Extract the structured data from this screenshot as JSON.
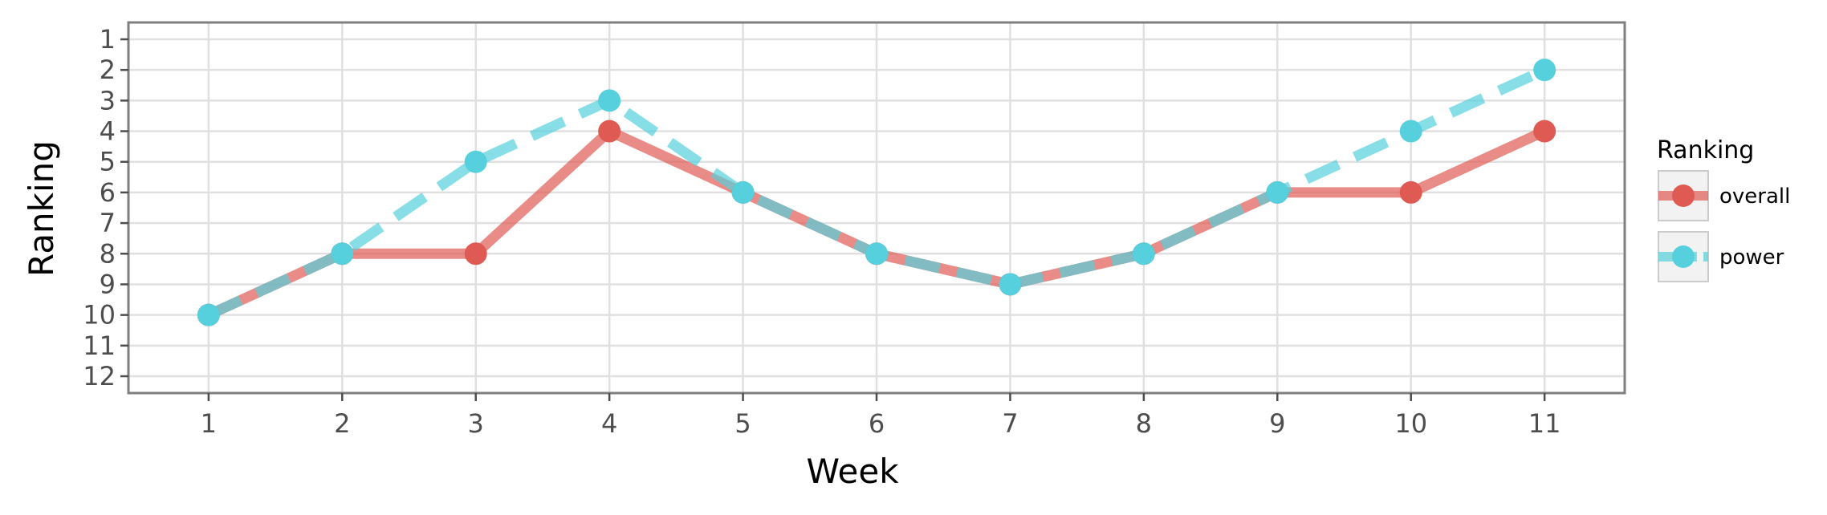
{
  "chart_data": {
    "type": "line",
    "title": "",
    "xlabel": "Week",
    "ylabel": "Ranking",
    "x": [
      1,
      2,
      3,
      4,
      5,
      6,
      7,
      8,
      9,
      10,
      11
    ],
    "x_ticks": [
      "1",
      "2",
      "3",
      "4",
      "5",
      "6",
      "7",
      "8",
      "9",
      "10",
      "11"
    ],
    "y_ticks": [
      "1",
      "2",
      "3",
      "4",
      "5",
      "6",
      "7",
      "8",
      "9",
      "10",
      "11",
      "12"
    ],
    "xlim": [
      0.4,
      11.6
    ],
    "ylim": [
      12.55,
      0.45
    ],
    "y_reversed": true,
    "grid": true,
    "legend": {
      "title": "Ranking",
      "position": "right"
    },
    "series": [
      {
        "name": "overall",
        "color": "#df5a53",
        "line_style": "solid",
        "values": [
          10,
          8,
          8,
          4,
          6,
          8,
          9,
          8,
          6,
          6,
          4
        ]
      },
      {
        "name": "power",
        "color": "#56d0dc",
        "line_style": "dashed",
        "values": [
          10,
          8,
          5,
          3,
          6,
          8,
          9,
          8,
          6,
          4,
          2
        ]
      }
    ]
  }
}
